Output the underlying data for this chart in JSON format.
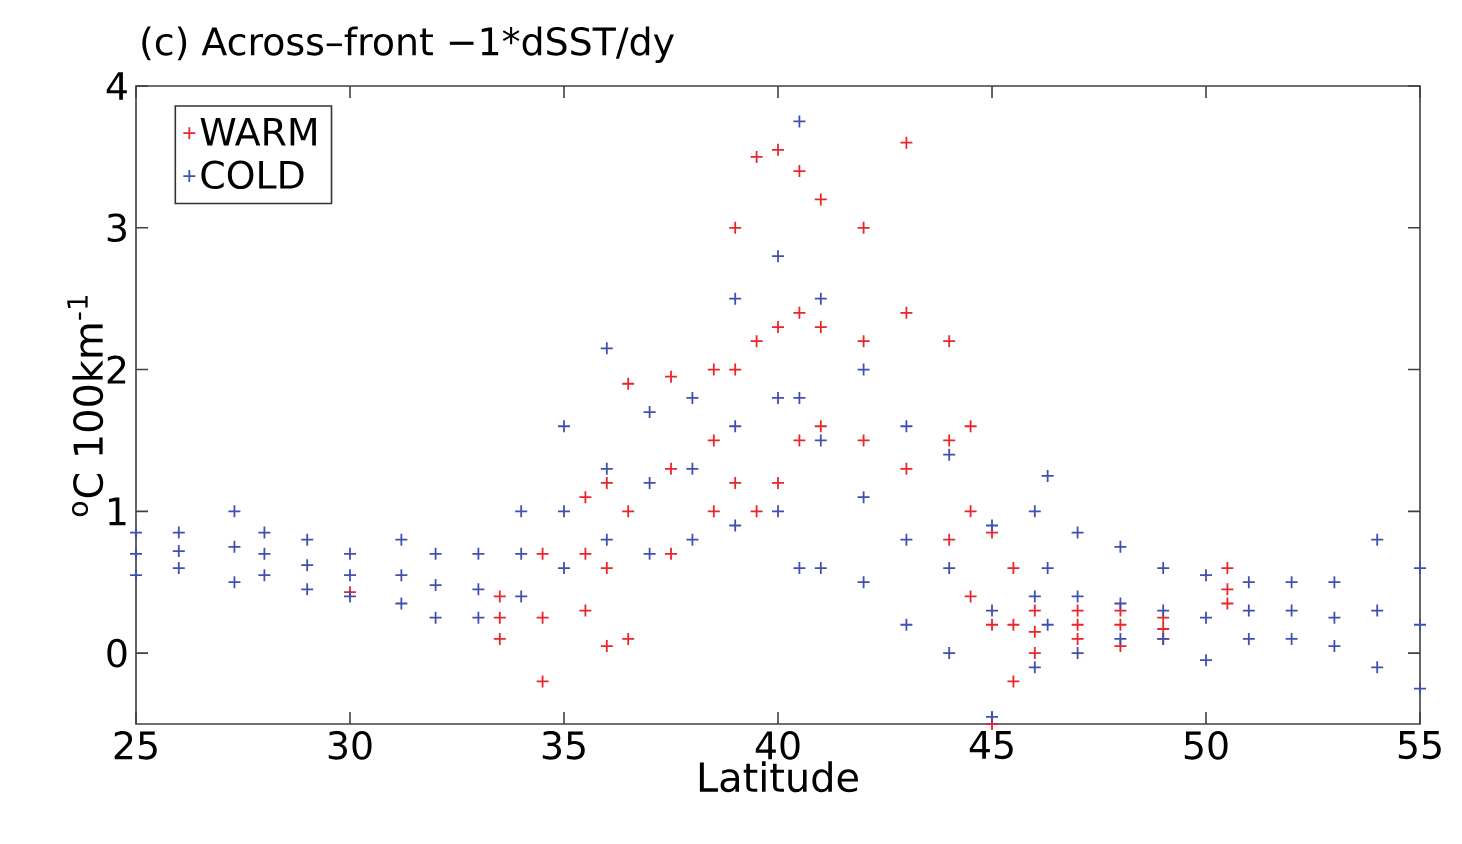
{
  "chart_data": {
    "type": "scatter",
    "title": "(c) Across–front −1*dSST/dy",
    "xlabel": "Latitude",
    "ylabel": "$^{o}$C 100km$^{-1}$",
    "xlim": [
      25,
      55
    ],
    "ylim": [
      -0.5,
      4
    ],
    "xticks": [
      25,
      30,
      35,
      40,
      45,
      50,
      55
    ],
    "yticks": [
      0,
      1,
      2,
      3,
      4
    ],
    "legend": "top left",
    "marker": "cross",
    "grid": false,
    "series": [
      {
        "name": "WARM",
        "color": "#e8262b",
        "x": [
          30,
          33.5,
          33.5,
          33.5,
          34.5,
          34.5,
          34.5,
          35.5,
          35.5,
          35.5,
          36,
          36,
          36,
          36.5,
          36.5,
          36.5,
          37.5,
          37.5,
          37.5,
          38.5,
          38.5,
          38.5,
          39,
          39,
          39,
          39.5,
          39.5,
          39.5,
          40,
          40,
          40,
          40.5,
          40.5,
          40.5,
          41,
          41,
          41,
          42,
          42,
          42,
          43,
          43,
          43,
          44,
          44,
          44,
          44.5,
          44.5,
          44.5,
          45,
          45,
          45,
          45.5,
          45.5,
          45.5,
          46,
          46,
          46,
          47,
          47,
          47,
          48,
          48,
          48,
          49,
          49,
          49,
          50.5,
          50.5,
          50.5
        ],
        "values": [
          0.43,
          0.1,
          0.25,
          0.4,
          -0.2,
          0.25,
          0.7,
          0.3,
          0.7,
          1.1,
          0.05,
          0.6,
          1.2,
          0.1,
          1.0,
          1.9,
          0.7,
          1.3,
          1.95,
          1.0,
          1.5,
          2.0,
          1.2,
          2.0,
          3.0,
          1.0,
          2.2,
          3.5,
          1.2,
          2.3,
          3.55,
          1.5,
          2.4,
          3.4,
          1.6,
          2.3,
          3.2,
          1.5,
          2.2,
          3.0,
          1.3,
          2.4,
          3.6,
          0.8,
          1.5,
          2.2,
          0.4,
          1.0,
          1.6,
          -0.5,
          0.2,
          0.85,
          -0.2,
          0.2,
          0.6,
          0.0,
          0.15,
          0.3,
          0.1,
          0.2,
          0.3,
          0.05,
          0.2,
          0.3,
          0.1,
          0.17,
          0.25,
          0.35,
          0.45,
          0.6
        ]
      },
      {
        "name": "COLD",
        "color": "#4050b0",
        "x": [
          25,
          25,
          25,
          26,
          26,
          26,
          27.3,
          27.3,
          27.3,
          28,
          28,
          28,
          29,
          29,
          29,
          30,
          30,
          30,
          31.2,
          31.2,
          31.2,
          32,
          32,
          32,
          33,
          33,
          33,
          34,
          34,
          34,
          35,
          35,
          35,
          36,
          36,
          36,
          37,
          37,
          37,
          38,
          38,
          38,
          39,
          39,
          39,
          40,
          40,
          40,
          40.5,
          40.5,
          40.5,
          41,
          41,
          41,
          42,
          42,
          42,
          43,
          43,
          43,
          44,
          44,
          44,
          45,
          45,
          45,
          46,
          46,
          46,
          46.3,
          46.3,
          46.3,
          47,
          47,
          47,
          48,
          48,
          48,
          49,
          49,
          49,
          50,
          50,
          50,
          51,
          51,
          51,
          52,
          52,
          52,
          53,
          53,
          53,
          54,
          54,
          54,
          55,
          55,
          55
        ],
        "values": [
          0.55,
          0.7,
          0.85,
          0.6,
          0.72,
          0.85,
          0.5,
          0.75,
          1.0,
          0.55,
          0.7,
          0.85,
          0.45,
          0.62,
          0.8,
          0.4,
          0.55,
          0.7,
          0.35,
          0.55,
          0.8,
          0.25,
          0.48,
          0.7,
          0.25,
          0.45,
          0.7,
          0.4,
          0.7,
          1.0,
          0.6,
          1.0,
          1.6,
          0.8,
          1.3,
          2.15,
          0.7,
          1.2,
          1.7,
          0.8,
          1.3,
          1.8,
          0.9,
          1.6,
          2.5,
          1.0,
          1.8,
          2.8,
          0.6,
          1.8,
          3.75,
          0.6,
          1.5,
          2.5,
          0.5,
          1.1,
          2.0,
          0.2,
          0.8,
          1.6,
          0.0,
          0.6,
          1.4,
          -0.45,
          0.3,
          0.9,
          -0.1,
          0.4,
          1.0,
          0.2,
          0.6,
          1.25,
          0.0,
          0.4,
          0.85,
          0.1,
          0.35,
          0.75,
          0.1,
          0.3,
          0.6,
          -0.05,
          0.25,
          0.55,
          0.1,
          0.3,
          0.5,
          0.1,
          0.3,
          0.5,
          0.05,
          0.25,
          0.5,
          -0.1,
          0.3,
          0.8,
          -0.25,
          0.2,
          0.6
        ]
      }
    ]
  }
}
